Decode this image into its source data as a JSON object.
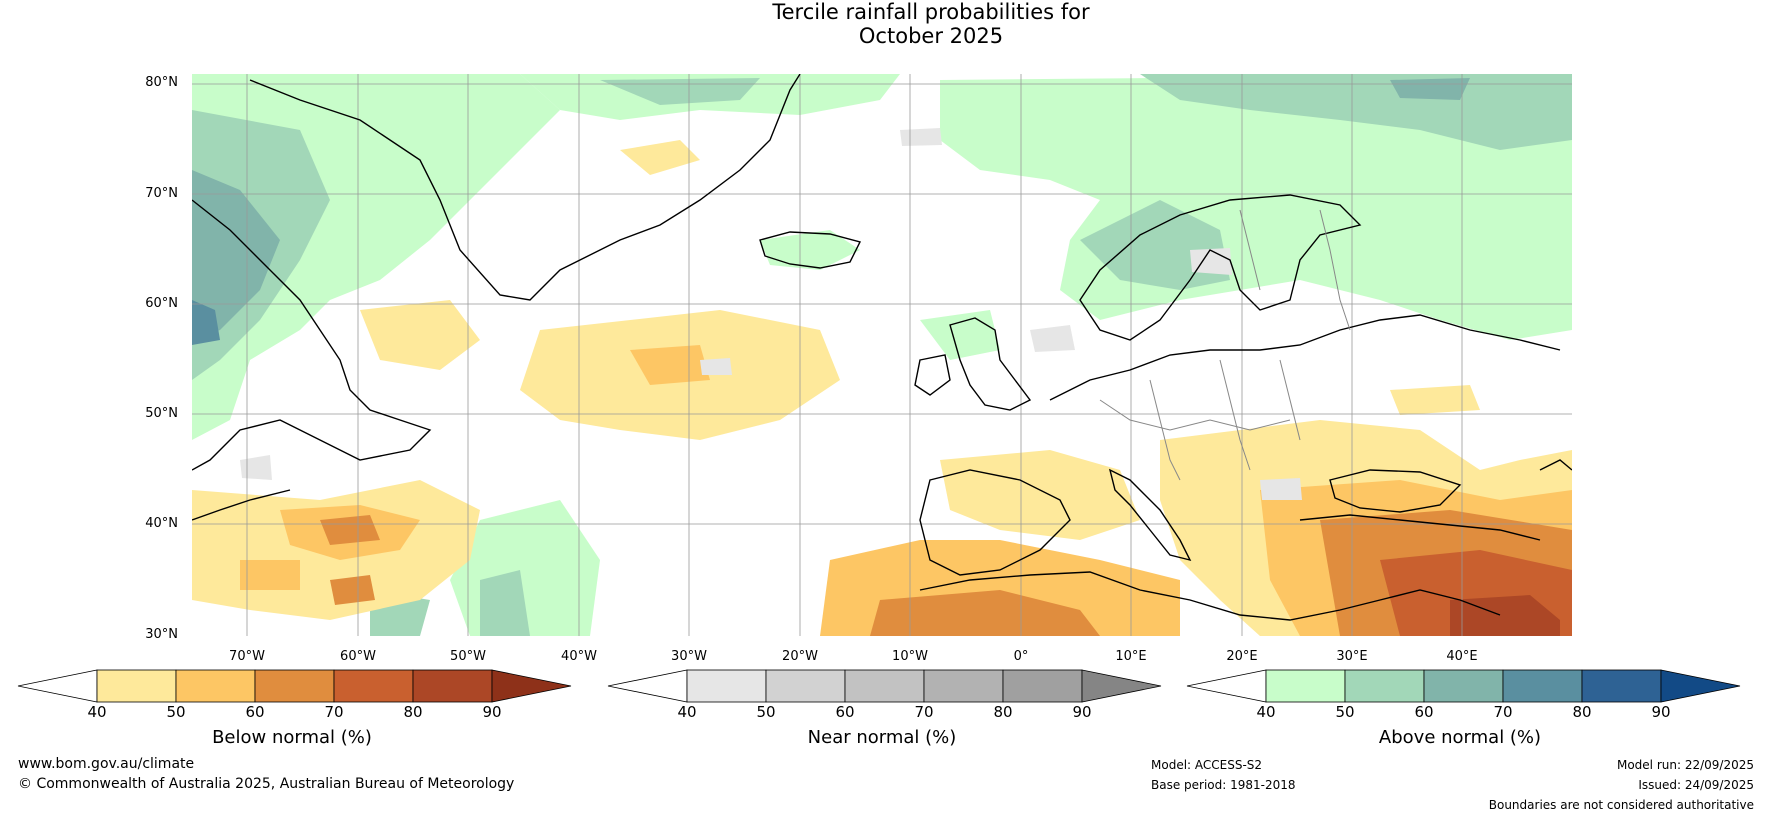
{
  "title": {
    "line1": "Tercile rainfall probabilities for",
    "line2": "October 2025"
  },
  "map": {
    "lat_labels": [
      "80°N",
      "70°N",
      "60°N",
      "50°N",
      "40°N",
      "30°N"
    ],
    "lon_labels": [
      "70°W",
      "60°W",
      "50°W",
      "40°W",
      "30°W",
      "20°W",
      "10°W",
      "0°",
      "10°E",
      "20°E",
      "30°E",
      "40°E"
    ],
    "lat_range": [
      30,
      81
    ],
    "lon_range": [
      -75,
      50
    ]
  },
  "colorbars": [
    {
      "title": "Below normal (%)",
      "ticks": [
        "40",
        "50",
        "60",
        "70",
        "80",
        "90"
      ],
      "colors": [
        "#ffffff",
        "#fee99b",
        "#fdc664",
        "#e08d3e",
        "#c9602f",
        "#ac4726",
        "#8e3119"
      ]
    },
    {
      "title": "Near normal (%)",
      "ticks": [
        "40",
        "50",
        "60",
        "70",
        "80",
        "90"
      ],
      "colors": [
        "#ffffff",
        "#e6e6e6",
        "#d2d2d2",
        "#c2c2c2",
        "#b2b2b2",
        "#a0a0a0",
        "#858585"
      ]
    },
    {
      "title": "Above normal (%)",
      "ticks": [
        "40",
        "50",
        "60",
        "70",
        "80",
        "90"
      ],
      "colors": [
        "#ffffff",
        "#c8fdca",
        "#a2d7b8",
        "#81b4aa",
        "#5a8fa0",
        "#2e6294",
        "#124a86"
      ]
    }
  ],
  "footer": {
    "website": "www.bom.gov.au/climate",
    "copyright": "© Commonwealth of Australia 2025, Australian Bureau of Meteorology",
    "model": "Model: ACCESS-S2",
    "base_period": "Base period: 1981-2018",
    "model_run": "Model run: 22/09/2025",
    "issued": "Issued: 24/09/2025",
    "disclaimer": "Boundaries are not considered authoritative"
  }
}
